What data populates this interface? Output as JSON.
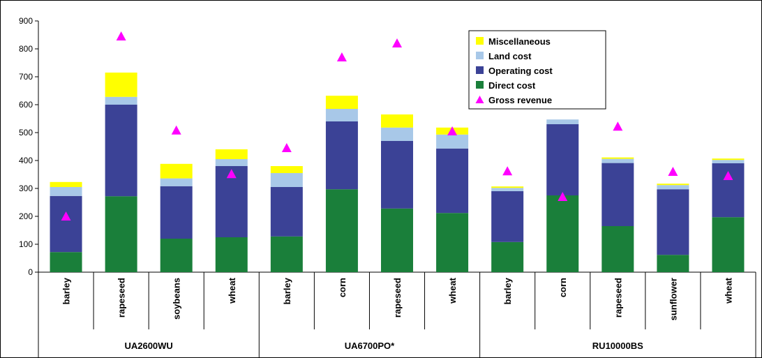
{
  "chart_data": {
    "type": "bar",
    "stacked": true,
    "groups": [
      {
        "label": "UA2600WU",
        "categories": [
          "barley",
          "rapeseed",
          "soybeans",
          "wheat"
        ]
      },
      {
        "label": "UA6700PO*",
        "categories": [
          "barley",
          "corn",
          "rapeseed",
          "wheat"
        ]
      },
      {
        "label": "RU10000BS",
        "categories": [
          "barley",
          "corn",
          "rapeseed",
          "sunflower",
          "wheat"
        ]
      }
    ],
    "series": [
      {
        "name": "Direct cost",
        "kind": "bar",
        "color": "#1a7f3a",
        "values": [
          72,
          272,
          120,
          125,
          128,
          297,
          228,
          212,
          108,
          275,
          165,
          62,
          197
        ]
      },
      {
        "name": "Operating cost",
        "kind": "bar",
        "color": "#3b4296",
        "values": [
          201,
          328,
          188,
          255,
          177,
          243,
          242,
          231,
          182,
          255,
          226,
          235,
          193
        ]
      },
      {
        "name": "Land cost",
        "kind": "bar",
        "color": "#a8c8e8",
        "values": [
          32,
          28,
          28,
          25,
          50,
          45,
          48,
          50,
          12,
          17,
          15,
          15,
          12
        ]
      },
      {
        "name": "Miscellaneous",
        "kind": "bar",
        "color": "#ffff00",
        "values": [
          18,
          87,
          52,
          35,
          25,
          47,
          47,
          25,
          5,
          0,
          5,
          5,
          5
        ]
      },
      {
        "name": "Gross revenue",
        "kind": "marker",
        "marker": "triangle",
        "color": "#ff00ff",
        "values": [
          200,
          845,
          508,
          352,
          445,
          770,
          820,
          505,
          362,
          270,
          522,
          360,
          345
        ]
      }
    ],
    "legend_order": [
      "Miscellaneous",
      "Land cost",
      "Operating cost",
      "Direct cost",
      "Gross revenue"
    ],
    "legend_position": "top-right",
    "ylim": [
      0,
      900
    ],
    "yticks": [
      "0",
      "100",
      "200",
      "300",
      "400",
      "500",
      "600",
      "700",
      "800",
      "900"
    ],
    "grid": false
  }
}
